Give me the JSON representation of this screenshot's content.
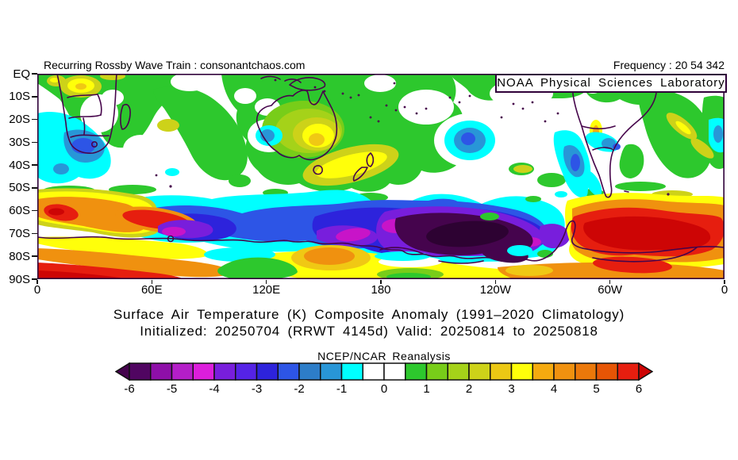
{
  "header": {
    "watermark": "Recurring Rossby Wave Train : consonantchaos.com",
    "frequency_label": "Frequency : 20 54 342",
    "agency_label": "NOAA Physical Sciences Laboratory"
  },
  "axes": {
    "lat_tick_labels": [
      "EQ",
      "10S",
      "20S",
      "30S",
      "40S",
      "50S",
      "60S",
      "70S",
      "80S",
      "90S"
    ],
    "lon_tick_labels": [
      "0",
      "60E",
      "120E",
      "180",
      "120W",
      "60W",
      "0"
    ]
  },
  "titles": {
    "line1": "Surface Air Temperature (K) Composite Anomaly (1991–2020 Climatology)",
    "line2": "Initialized: 20250704 (RRWT 4145d) Valid: 20250814 to 20250818",
    "colorbar_label": "NCEP/NCAR Reanalysis"
  },
  "colorbar": {
    "tick_labels": [
      "-6",
      "-5",
      "-4",
      "-3",
      "-2",
      "-1",
      "0",
      "1",
      "2",
      "3",
      "4",
      "5",
      "6"
    ],
    "below_range_color": "#45044d",
    "above_range_color": "#cd0505",
    "cell_colors": [
      "#500561",
      "#8e0fa8",
      "#b41ec8",
      "#dc1edc",
      "#781edc",
      "#5523e6",
      "#2d23dc",
      "#2d55e6",
      "#2d7dc8",
      "#2896d7",
      "#00ffff",
      "#ffffff",
      "#ffffff",
      "#2dc82d",
      "#78cd19",
      "#a5d219",
      "#cdd219",
      "#ebc814",
      "#ffff0a",
      "#f5aa0f",
      "#f0910f",
      "#eb780a",
      "#e65505",
      "#e61e0f"
    ]
  },
  "chart_data": {
    "type": "heatmap",
    "title": "Surface Air Temperature (K) Composite Anomaly (1991–2020 Climatology)",
    "subtitle": "Initialized: 20250704 (RRWT 4145d) Valid: 20250814 to 20250818",
    "dataset": "NCEP/NCAR Reanalysis",
    "source_label": "NOAA Physical Sciences Laboratory",
    "units": "K",
    "x_axis": {
      "label": "longitude",
      "tick_labels": [
        "0",
        "60E",
        "120E",
        "180",
        "120W",
        "60W",
        "0"
      ],
      "range_deg": [
        0,
        360
      ]
    },
    "y_axis": {
      "label": "latitude",
      "tick_labels": [
        "EQ",
        "10S",
        "20S",
        "30S",
        "40S",
        "50S",
        "60S",
        "70S",
        "80S",
        "90S"
      ],
      "range": [
        "EQ",
        "90S"
      ]
    },
    "color_scale": {
      "min": -6,
      "max": 6,
      "level_step": 0.5,
      "open_ended": true
    },
    "notable_features": [
      {
        "region": "Tropical band EQ-20S, most longitudes",
        "approx_anomaly_K": 0.5
      },
      {
        "region": "Central-southern Africa (15E-30E, 0-10S)",
        "approx_anomaly_K": 2.5
      },
      {
        "region": "Central Australia",
        "approx_anomaly_K": 3
      },
      {
        "region": "SE Atlantic off South Africa (0-25E, 25-40S)",
        "approx_anomaly_K": -2.5
      },
      {
        "region": "West Australian coast (115E, 25-35S)",
        "approx_anomaly_K": -1.5
      },
      {
        "region": "Central South Pacific (150W-130W, 20-40S)",
        "approx_anomaly_K": -2.5
      },
      {
        "region": "Chile / Andes coast (75W, 25-50S)",
        "approx_anomaly_K": -2
      },
      {
        "region": "Mid-latitude belt 40-55S",
        "approx_anomaly_K": 0
      },
      {
        "region": "Atlantic-Indian sector of Southern Ocean (0-40E, 55-65S)",
        "approx_anomaly_K": 5.5
      },
      {
        "region": "East Antarctic coastal band (40E-170E, 62-72S)",
        "approx_anomaly_K": -4
      },
      {
        "region": "Ross Sea - Marie Byrd Land core (170E-120W, 65-80S)",
        "approx_anomaly_K": -6.5
      },
      {
        "region": "Amundsen-Bellingshausen-Weddell / Antarctic Peninsula (120W-20W, 58-78S)",
        "approx_anomaly_K": 6
      },
      {
        "region": "East Antarctic interior (0-60E, 80-90S)",
        "approx_anomaly_K": 5
      },
      {
        "region": "Antarctic interior near 100E-150E, 80-90S",
        "approx_anomaly_K": 1
      }
    ]
  }
}
